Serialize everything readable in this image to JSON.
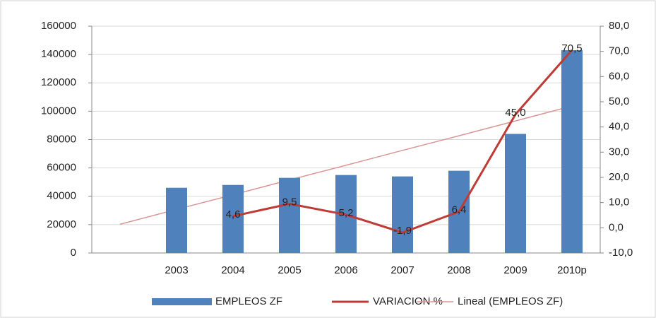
{
  "chart_data": {
    "type": "bar",
    "categories": [
      null,
      "2003",
      "2004",
      "2005",
      "2006",
      "2007",
      "2008",
      "2009",
      "2010p"
    ],
    "series": [
      {
        "name": "EMPLEOS ZF",
        "type": "bar",
        "color": "#4f81bd",
        "values": [
          null,
          46000,
          48000,
          53000,
          55000,
          54000,
          58000,
          84000,
          143000
        ]
      },
      {
        "name": "VARIACION %",
        "type": "line",
        "axis": "y2",
        "color": "#be3b36",
        "values": [
          null,
          null,
          4.6,
          9.5,
          5.2,
          -1.9,
          6.4,
          45.0,
          70.5
        ],
        "value_labels": [
          null,
          null,
          "4,6",
          "9,5",
          "5,2",
          "-1,9",
          "6,4",
          "45,0",
          "70,5"
        ]
      },
      {
        "name": "Lineal (EMPLEOS ZF)",
        "type": "trend",
        "axis": "y2",
        "color": "#d99694",
        "values": [
          1.4,
          7.3,
          13.1,
          19.0,
          24.8,
          30.7,
          36.5,
          42.4,
          48.3
        ]
      }
    ],
    "ylim": [
      0,
      160000
    ],
    "yticks": [
      0,
      20000,
      40000,
      60000,
      80000,
      100000,
      120000,
      140000,
      160000
    ],
    "y2lim": [
      -10,
      80
    ],
    "y2ticks": [
      {
        "value": -10,
        "label": "-10,0"
      },
      {
        "value": 0,
        "label": "0,0"
      },
      {
        "value": 10,
        "label": "10,0"
      },
      {
        "value": 20,
        "label": "20,0"
      },
      {
        "value": 30,
        "label": "30,0"
      },
      {
        "value": 40,
        "label": "40,0"
      },
      {
        "value": 50,
        "label": "50,0"
      },
      {
        "value": 60,
        "label": "60,0"
      },
      {
        "value": 70,
        "label": "70,0"
      },
      {
        "value": 80,
        "label": "80,0"
      }
    ],
    "grid": true,
    "legend": "bottom"
  }
}
